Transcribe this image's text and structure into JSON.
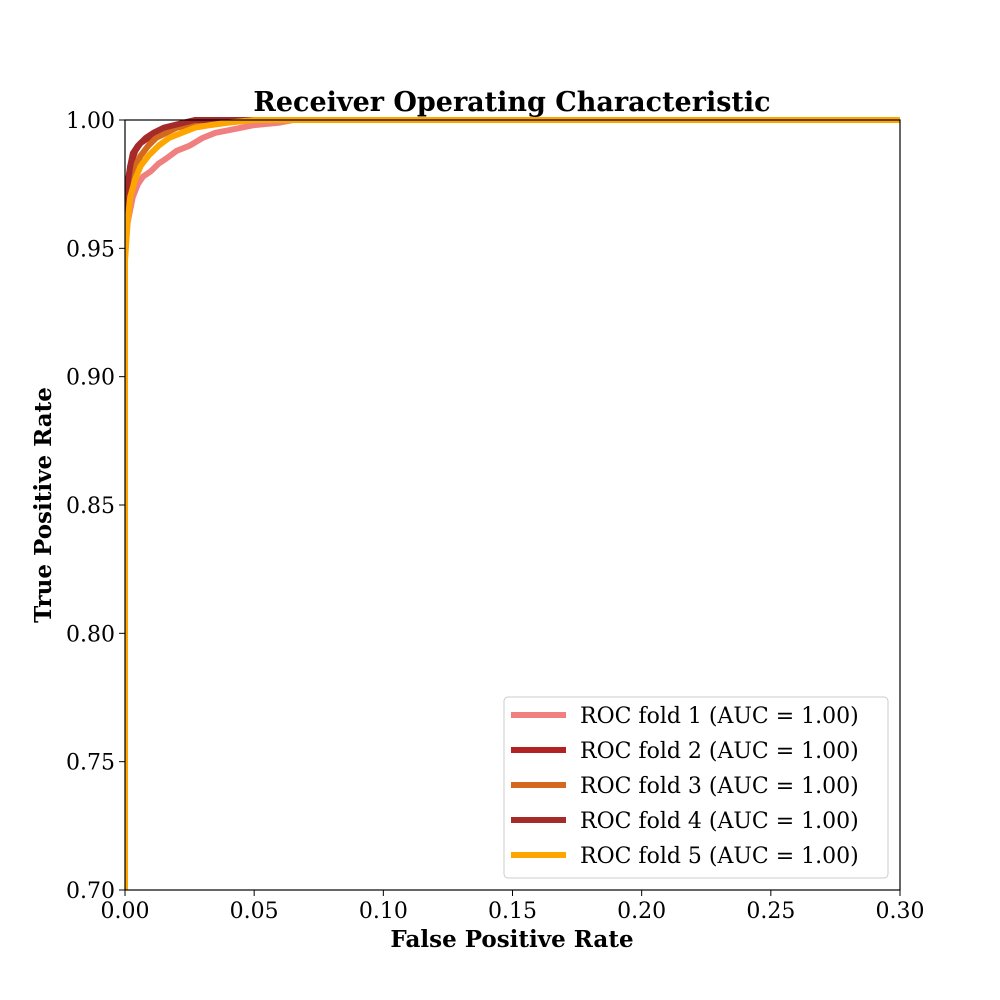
{
  "chart_data": {
    "type": "line",
    "title": "Receiver Operating Characteristic",
    "xlabel": "False Positive Rate",
    "ylabel": "True Positive Rate",
    "xlim": [
      0.0,
      0.3
    ],
    "ylim": [
      0.7,
      1.0
    ],
    "xticks": [
      "0.00",
      "0.05",
      "0.10",
      "0.15",
      "0.20",
      "0.25",
      "0.30"
    ],
    "yticks": [
      "0.70",
      "0.75",
      "0.80",
      "0.85",
      "0.90",
      "0.95",
      "1.00"
    ],
    "grid": false,
    "legend_position": "lower-right",
    "series": [
      {
        "name": "ROC fold 1 (AUC = 1.00)",
        "color": "#f08080",
        "x": [
          0.0,
          0.0,
          0.001,
          0.002,
          0.003,
          0.005,
          0.007,
          0.01,
          0.013,
          0.016,
          0.02,
          0.025,
          0.03,
          0.035,
          0.04,
          0.05,
          0.06,
          0.065,
          0.3
        ],
        "y": [
          0.7,
          0.95,
          0.96,
          0.965,
          0.97,
          0.975,
          0.978,
          0.98,
          0.983,
          0.985,
          0.988,
          0.99,
          0.993,
          0.995,
          0.996,
          0.998,
          0.999,
          1.0,
          1.0
        ]
      },
      {
        "name": "ROC fold 2 (AUC = 1.00)",
        "color": "#b22222",
        "x": [
          0.0,
          0.0,
          0.001,
          0.002,
          0.004,
          0.006,
          0.009,
          0.012,
          0.016,
          0.02,
          0.025,
          0.03,
          0.3
        ],
        "y": [
          0.7,
          0.96,
          0.975,
          0.982,
          0.988,
          0.991,
          0.993,
          0.995,
          0.997,
          0.998,
          0.999,
          1.0,
          1.0
        ]
      },
      {
        "name": "ROC fold 3 (AUC = 1.00)",
        "color": "#d2691e",
        "x": [
          0.0,
          0.0,
          0.001,
          0.002,
          0.004,
          0.006,
          0.009,
          0.012,
          0.016,
          0.02,
          0.025,
          0.03,
          0.035,
          0.04,
          0.3
        ],
        "y": [
          0.7,
          0.95,
          0.965,
          0.975,
          0.982,
          0.986,
          0.99,
          0.993,
          0.995,
          0.997,
          0.998,
          0.999,
          0.9995,
          1.0,
          1.0
        ]
      },
      {
        "name": "ROC fold 4 (AUC = 1.00)",
        "color": "#a52a2a",
        "x": [
          0.0,
          0.0,
          0.001,
          0.002,
          0.003,
          0.005,
          0.008,
          0.011,
          0.015,
          0.019,
          0.023,
          0.027,
          0.3
        ],
        "y": [
          0.7,
          0.965,
          0.975,
          0.982,
          0.987,
          0.99,
          0.993,
          0.995,
          0.997,
          0.998,
          0.999,
          1.0,
          1.0
        ]
      },
      {
        "name": "ROC fold 5 (AUC = 1.00)",
        "color": "#ffa500",
        "x": [
          0.0,
          0.0,
          0.001,
          0.002,
          0.004,
          0.006,
          0.009,
          0.013,
          0.017,
          0.022,
          0.027,
          0.033,
          0.04,
          0.05,
          0.3
        ],
        "y": [
          0.7,
          0.945,
          0.96,
          0.97,
          0.977,
          0.982,
          0.986,
          0.99,
          0.993,
          0.995,
          0.997,
          0.998,
          0.999,
          1.0,
          1.0
        ]
      }
    ]
  }
}
